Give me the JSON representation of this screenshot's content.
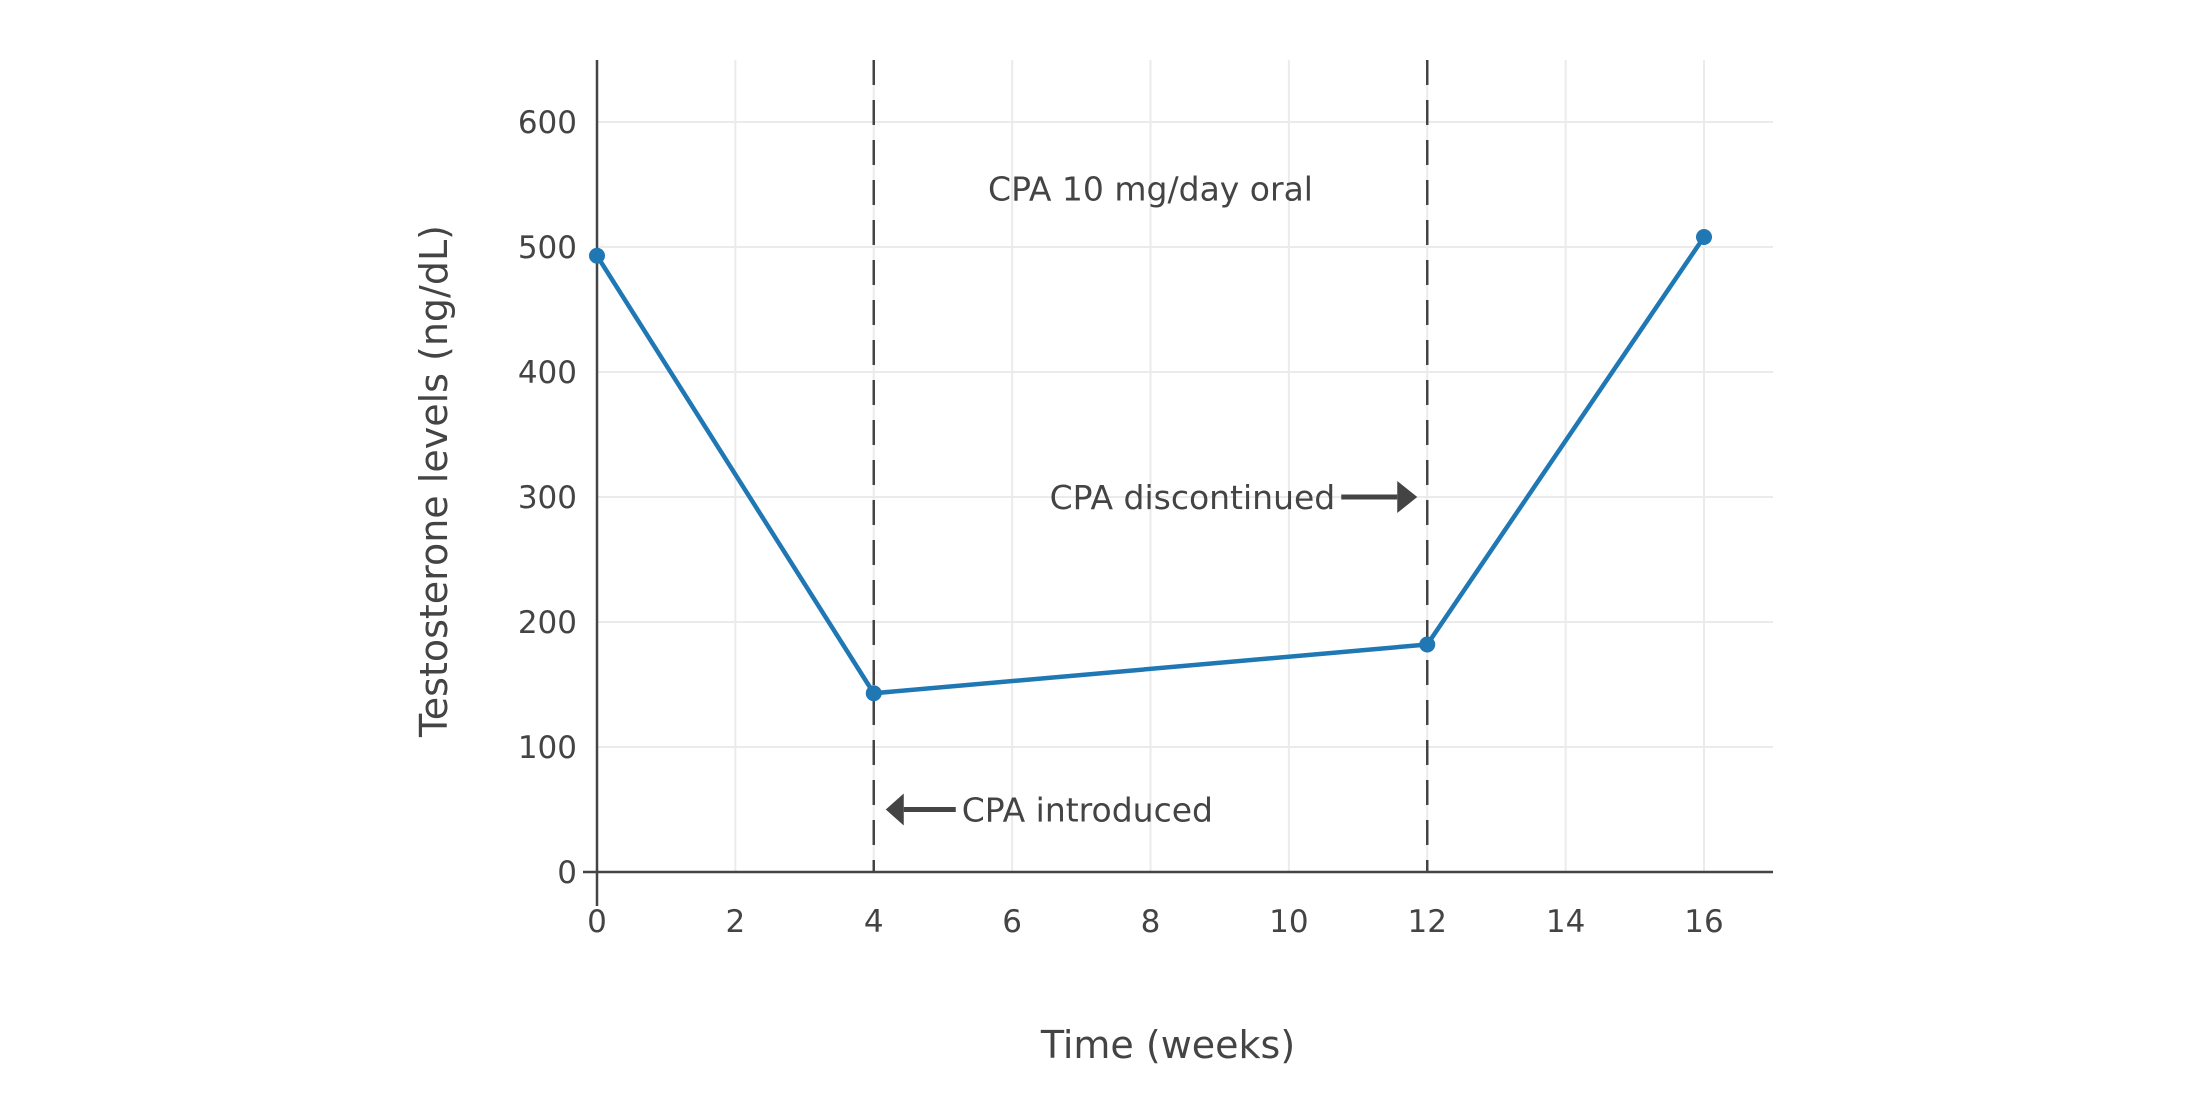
{
  "chart_data": {
    "type": "line",
    "title": "",
    "xlabel": "Time (weeks)",
    "ylabel": "Testosterone levels (ng/dL)",
    "xlim": [
      0,
      17
    ],
    "ylim": [
      0,
      650
    ],
    "x_ticks": [
      0,
      2,
      4,
      6,
      8,
      10,
      12,
      14,
      16
    ],
    "y_ticks": [
      0,
      100,
      200,
      300,
      400,
      500,
      600
    ],
    "grid": true,
    "x": [
      0,
      4,
      12,
      16
    ],
    "series": [
      {
        "values": [
          493,
          143,
          182,
          508
        ],
        "color": "#1f77b4"
      }
    ],
    "vertical_lines": [
      4,
      12
    ],
    "annotations": [
      {
        "text": "CPA 10 mg/day oral",
        "x": 8,
        "y": 547,
        "arrow": "none"
      },
      {
        "text": "CPA discontinued",
        "x": 12,
        "y": 300,
        "arrow": "right"
      },
      {
        "text": "CPA introduced",
        "x": 4,
        "y": 50,
        "arrow": "left"
      }
    ]
  }
}
